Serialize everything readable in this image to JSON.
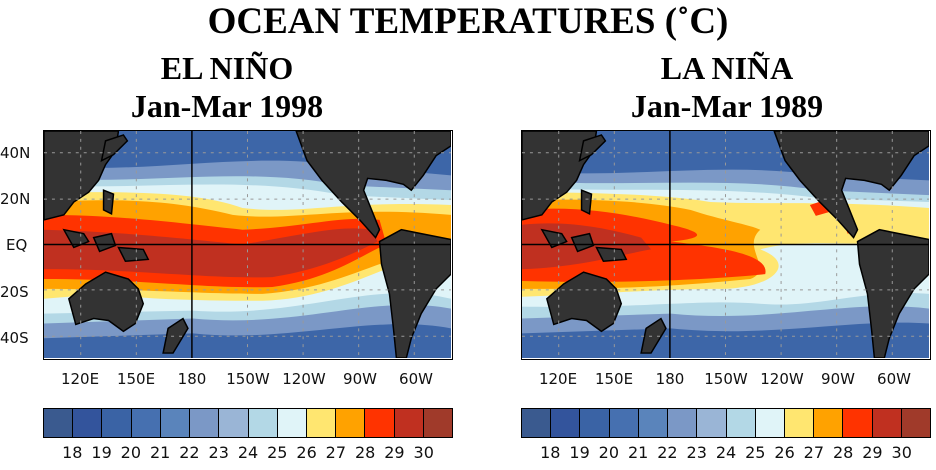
{
  "title": "OCEAN TEMPERATURES (˚C)",
  "panels": [
    {
      "name": "EL NIÑO",
      "period": "Jan-Mar 1998"
    },
    {
      "name": "LA NIÑA",
      "period": "Jan-Mar 1989"
    }
  ],
  "lat_labels": [
    "40N",
    "20N",
    "EQ",
    "20S",
    "40S"
  ],
  "lon_labels": [
    "120E",
    "150E",
    "180",
    "150W",
    "120W",
    "90W",
    "60W"
  ],
  "colorbar": {
    "labels": [
      "18",
      "19",
      "20",
      "21",
      "22",
      "23",
      "24",
      "25",
      "26",
      "27",
      "28",
      "29",
      "30"
    ],
    "colors": [
      "#3a5a8f",
      "#33549c",
      "#3a63a5",
      "#4670b0",
      "#5a84bb",
      "#7b98c6",
      "#9ab5d6",
      "#b3d8e6",
      "#e0f4f8",
      "#ffe670",
      "#ffa200",
      "#ff3300",
      "#c03020",
      "#a03a2a"
    ]
  },
  "land_color": "#333333"
}
